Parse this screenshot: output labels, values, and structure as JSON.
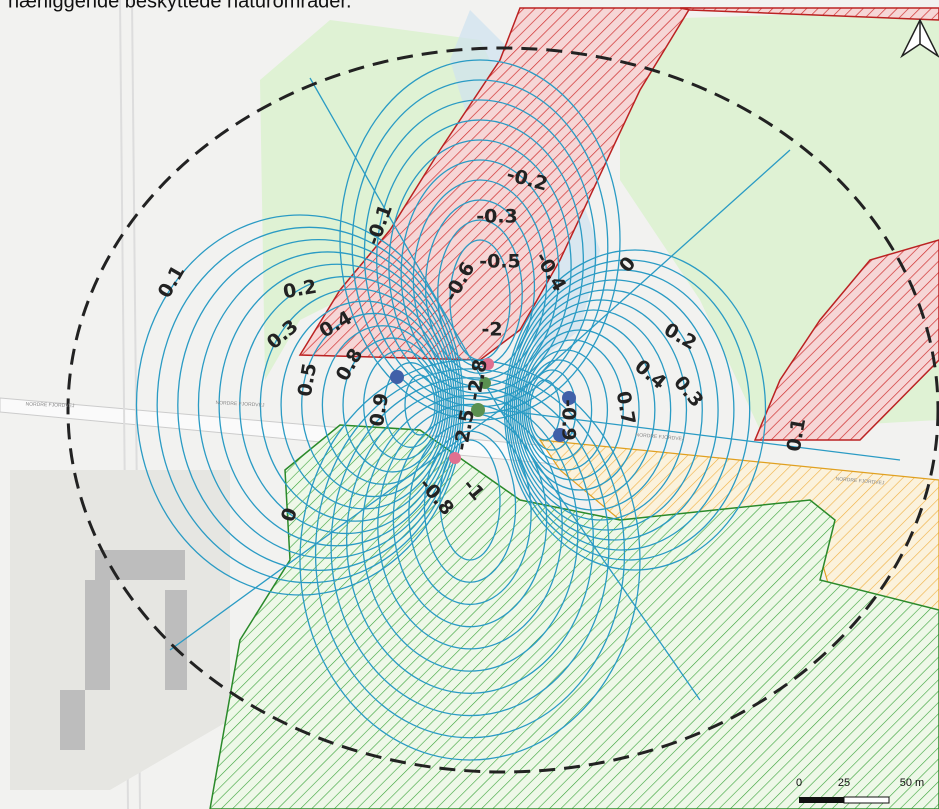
{
  "caption": "nærliggende beskyttede naturområder.",
  "contour_labels": [
    "-0.2",
    "-0.3",
    "-0.5",
    "-0.4",
    "-0.6",
    "-0.1",
    "0.1",
    "0.2",
    "0.3",
    "0.4",
    "0.5",
    "0.8",
    "0.9",
    "-2",
    "-2.8",
    "-2.5",
    "-0.9",
    "0.7",
    "0.2",
    "0.4",
    "0.3",
    "0",
    "0.1",
    "-0.8",
    "-1",
    "0"
  ],
  "road_labels": [
    "NORDRE FJORDVEJ",
    "NORDRE FJORDVEJ",
    "NORDRE FJORDVEJ",
    "NORDRE FJORDVEJ"
  ],
  "scale_bar": {
    "labels": [
      "0",
      "25",
      "50 m"
    ]
  }
}
